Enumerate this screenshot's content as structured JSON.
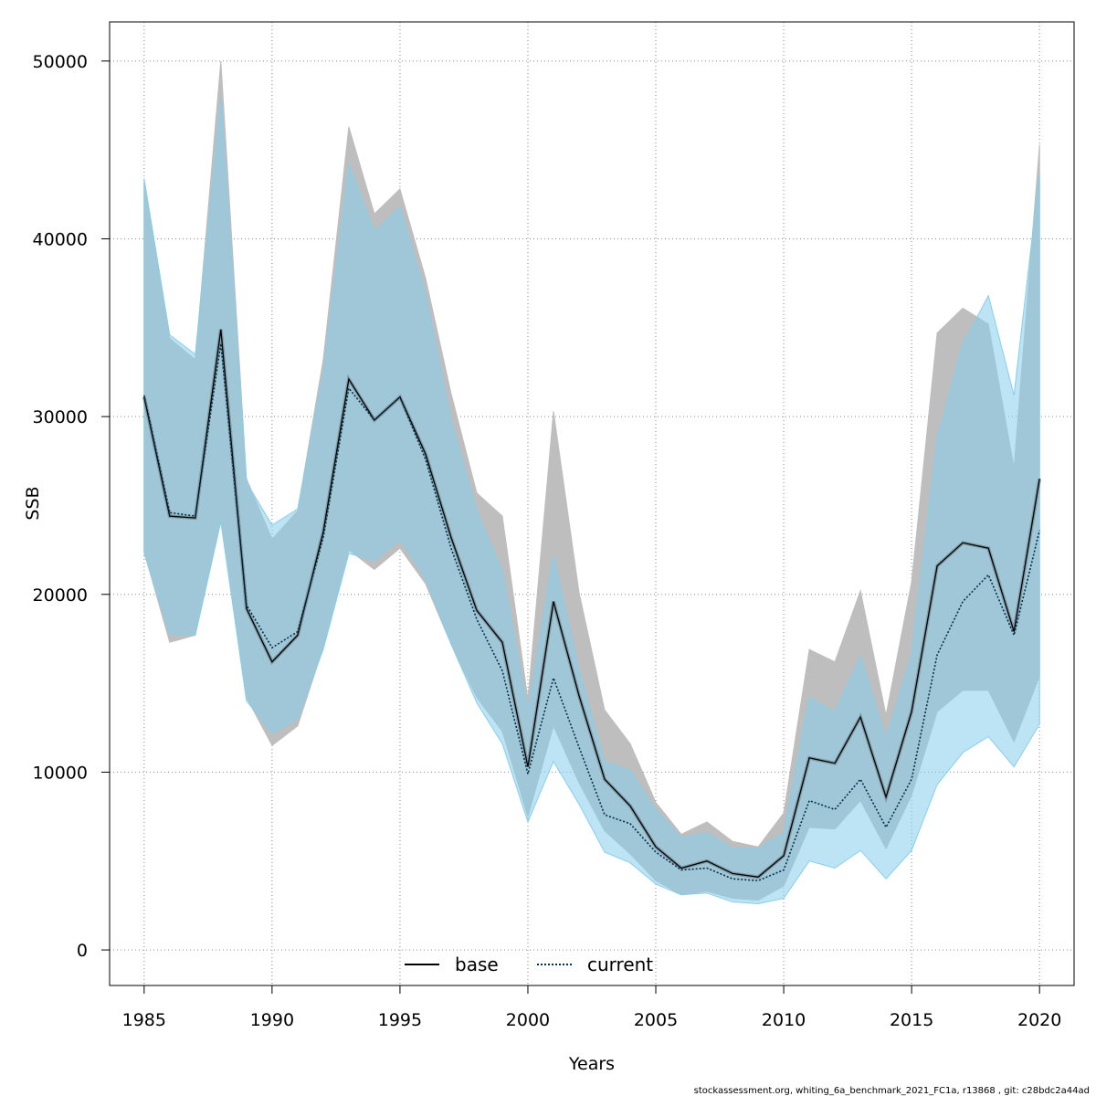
{
  "chart_data": {
    "type": "line",
    "title": "",
    "xlabel": "Years",
    "ylabel": "SSB",
    "xlim": [
      1983.65,
      2021.35
    ],
    "ylim": [
      -2000,
      52200
    ],
    "xticks": [
      1985,
      1990,
      1995,
      2000,
      2005,
      2010,
      2015,
      2020
    ],
    "yticks": [
      0,
      10000,
      20000,
      30000,
      40000,
      50000
    ],
    "grid": true,
    "legend_position": "bottom-center",
    "x": [
      1985,
      1986,
      1987,
      1988,
      1989,
      1990,
      1991,
      1992,
      1993,
      1994,
      1995,
      1996,
      1997,
      1998,
      1999,
      2000,
      2001,
      2002,
      2003,
      2004,
      2005,
      2006,
      2007,
      2008,
      2009,
      2010,
      2011,
      2012,
      2013,
      2014,
      2015,
      2016,
      2017,
      2018,
      2019,
      2020
    ],
    "series": [
      {
        "name": "base",
        "color": "#000000",
        "band_color": "#bebebe",
        "line_style": "solid",
        "values": [
          31100,
          24400,
          24300,
          34900,
          19200,
          16200,
          17700,
          23500,
          32100,
          29800,
          31100,
          27900,
          23200,
          19100,
          17300,
          10300,
          19600,
          14300,
          9600,
          8100,
          5800,
          4600,
          5000,
          4300,
          4100,
          5300,
          10800,
          10500,
          13100,
          8600,
          13400,
          21600,
          22900,
          22600,
          17900,
          26500
        ],
        "lower": [
          22400,
          17300,
          17700,
          24100,
          14200,
          11500,
          12600,
          17000,
          22500,
          21400,
          22600,
          20600,
          17200,
          14200,
          12300,
          7500,
          12600,
          9400,
          6700,
          5400,
          3900,
          3100,
          3300,
          2900,
          2800,
          3600,
          6900,
          6800,
          8400,
          5700,
          8700,
          13400,
          14600,
          14600,
          11700,
          15400
        ],
        "upper": [
          43100,
          34400,
          33200,
          50000,
          26500,
          23100,
          24700,
          33200,
          46300,
          41400,
          42800,
          37800,
          31300,
          25700,
          24400,
          14100,
          30300,
          20100,
          13500,
          11600,
          8300,
          6500,
          7200,
          6100,
          5800,
          7700,
          16900,
          16200,
          20200,
          13200,
          20700,
          34700,
          36100,
          35200,
          27100,
          45300
        ]
      },
      {
        "name": "current",
        "color": "#00314c",
        "band_color": "#87ceeb",
        "line_style": "dotted",
        "values": [
          31200,
          24600,
          24400,
          34100,
          19400,
          17000,
          17900,
          23200,
          31600,
          29800,
          31100,
          27600,
          22600,
          18600,
          15700,
          9900,
          15300,
          11400,
          7600,
          7100,
          5500,
          4500,
          4600,
          4000,
          3900,
          4500,
          8400,
          7900,
          9600,
          6900,
          9600,
          16600,
          19600,
          21100,
          17700,
          23600
        ],
        "lower": [
          22300,
          17800,
          17700,
          24100,
          14000,
          12200,
          13000,
          16900,
          22300,
          21900,
          23100,
          20900,
          17200,
          13900,
          11600,
          7200,
          10600,
          8200,
          5500,
          4900,
          3700,
          3100,
          3200,
          2700,
          2600,
          2900,
          5000,
          4600,
          5600,
          4000,
          5600,
          9300,
          11100,
          12000,
          10300,
          12700
        ],
        "upper": [
          43400,
          34600,
          33500,
          47900,
          26300,
          23900,
          24800,
          32500,
          44200,
          40400,
          41800,
          36900,
          29800,
          24700,
          21300,
          13500,
          22200,
          15700,
          10600,
          10100,
          7900,
          6300,
          6600,
          5700,
          5700,
          6600,
          14200,
          13400,
          16500,
          11900,
          16600,
          28800,
          34100,
          36800,
          31200,
          43700
        ]
      }
    ],
    "footer": "stockassessment.org, whiting_6a_benchmark_2021_FC1a, r13868 , git: c28bdc2a44ad"
  }
}
